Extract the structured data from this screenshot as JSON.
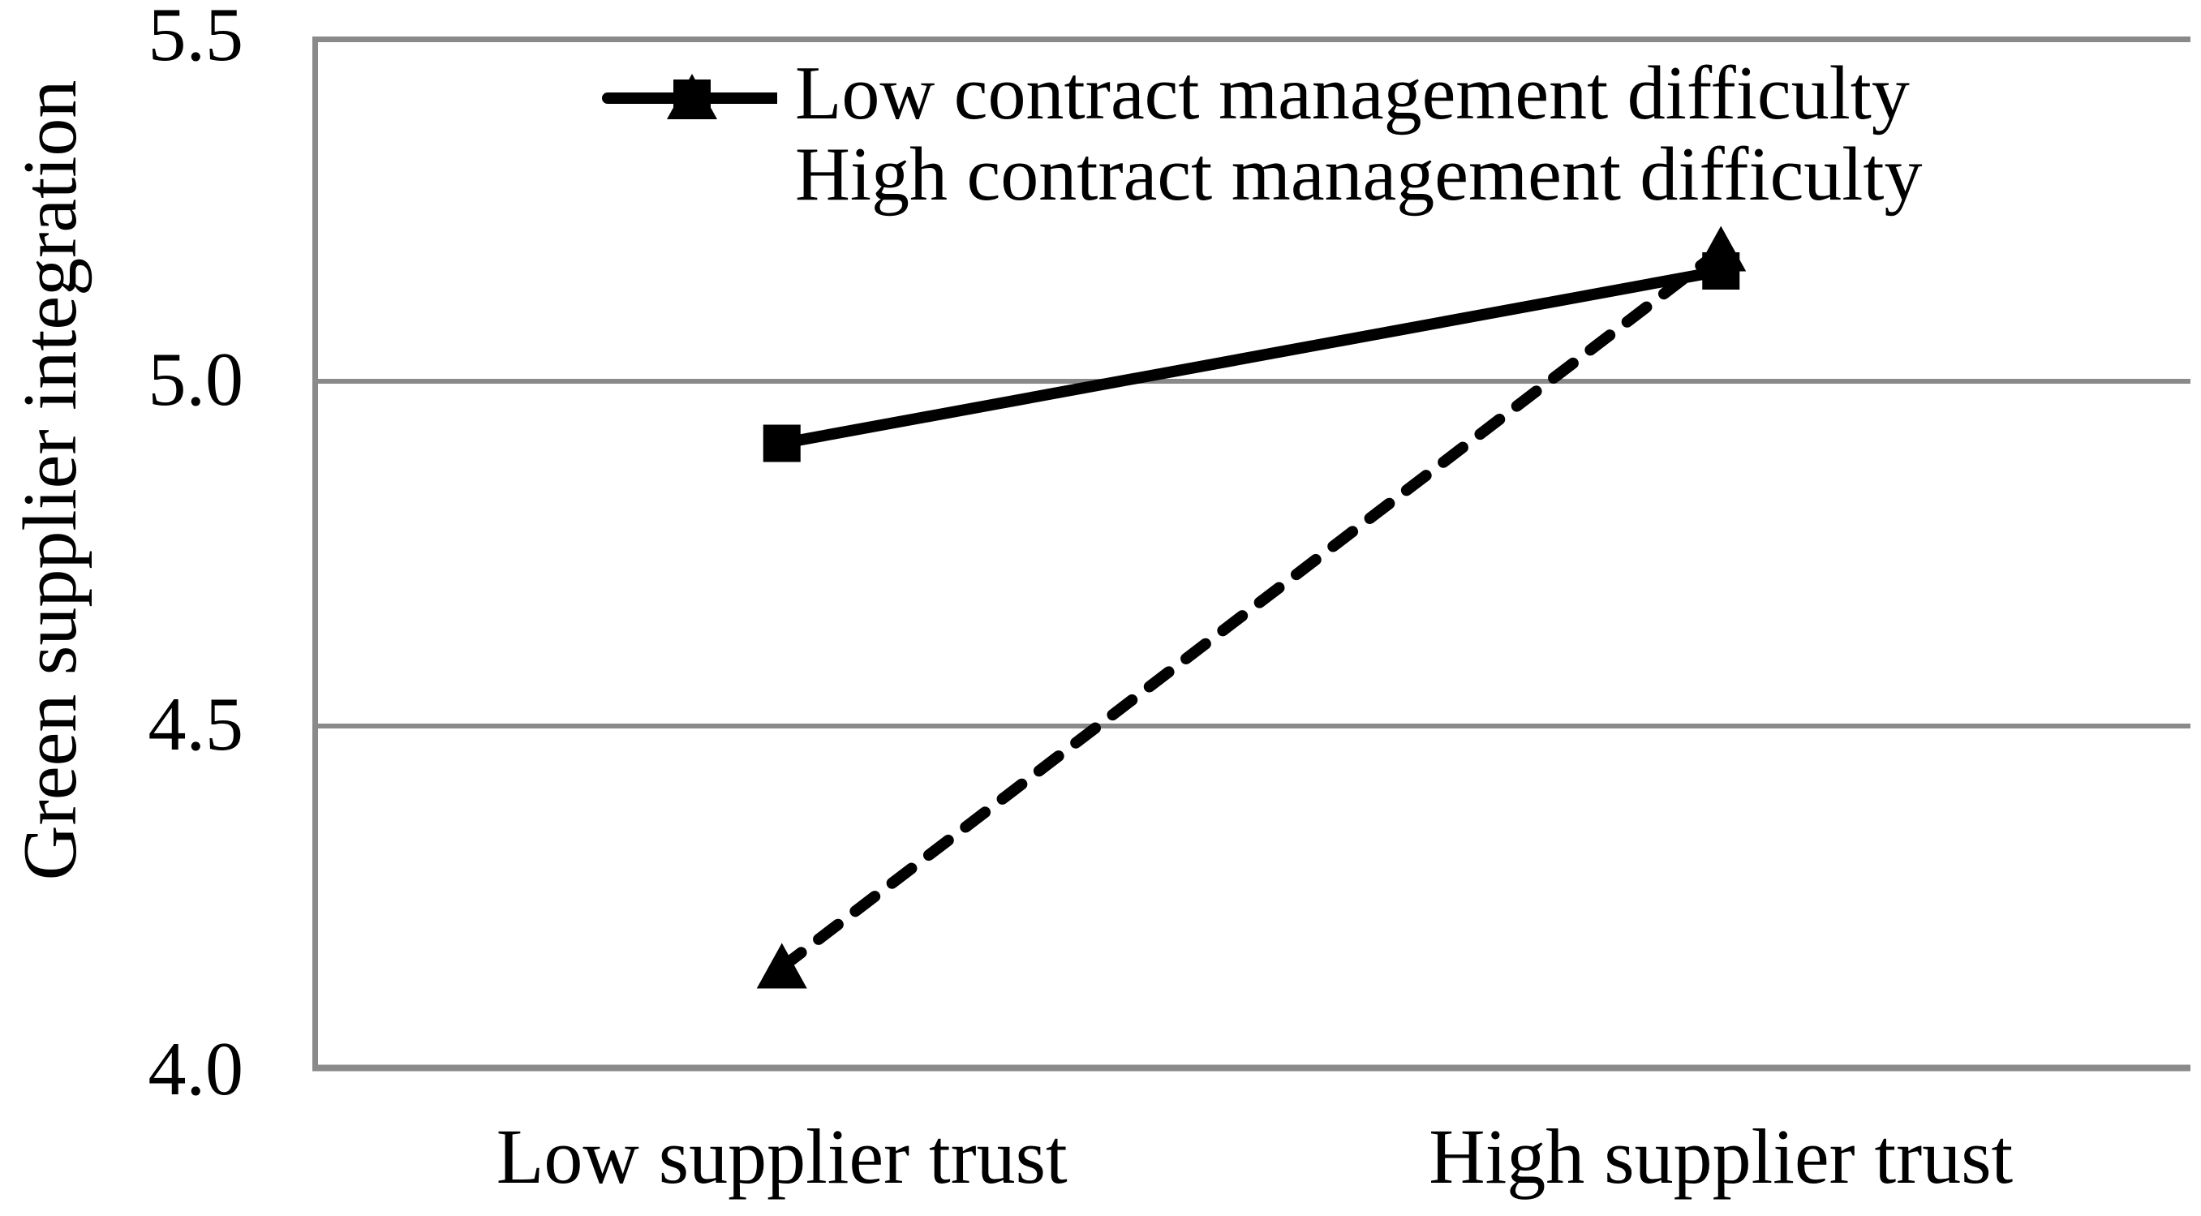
{
  "figure": {
    "background": "#ffffff",
    "axis_color": "#8a8a8a",
    "series_color": "#000000",
    "text_color": "#000000"
  },
  "chart_data": {
    "type": "line",
    "title": "",
    "xlabel": "",
    "ylabel": "Green supplier integration",
    "categories": [
      "Low supplier trust",
      "High supplier trust"
    ],
    "ylim": [
      4.0,
      5.5
    ],
    "yticks": [
      4.0,
      4.5,
      5.0,
      5.5
    ],
    "ytick_labels": [
      "4.0",
      "4.5",
      "5.0",
      "5.5"
    ],
    "grid": "horizontal-only",
    "legend_position": "top-left-inside",
    "series": [
      {
        "name": "Low contract management difficulty",
        "values": [
          4.15,
          5.19
        ],
        "line_style": "dashed",
        "marker": "triangle",
        "color": "#000000"
      },
      {
        "name": "High contract management difficulty",
        "values": [
          4.91,
          5.16
        ],
        "line_style": "solid",
        "marker": "square",
        "color": "#000000"
      }
    ]
  }
}
